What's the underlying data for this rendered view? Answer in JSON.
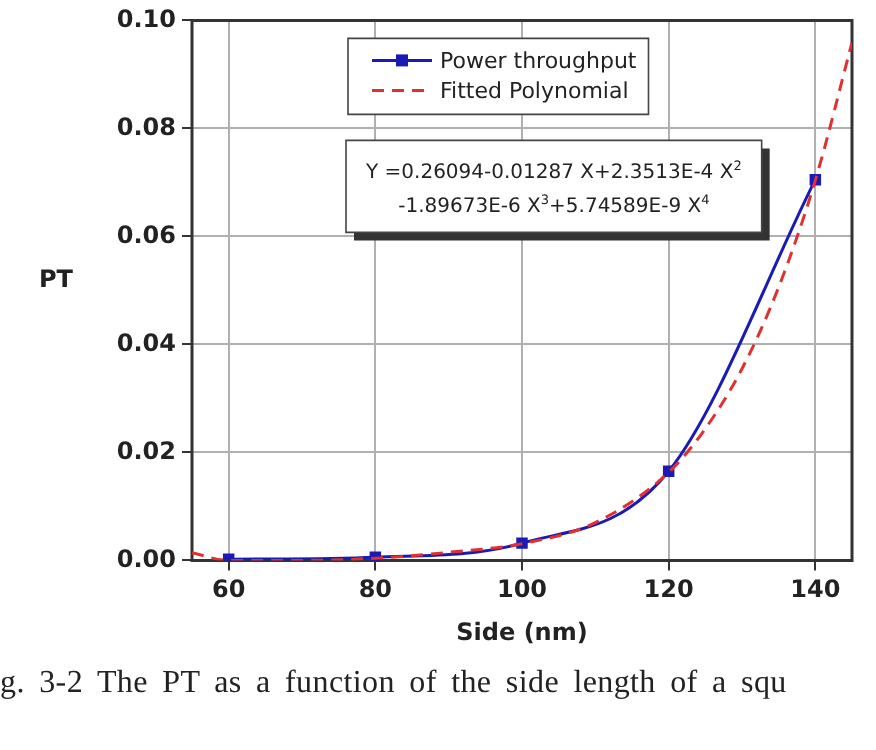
{
  "chart_data": {
    "type": "line",
    "xlabel": "Side (nm)",
    "ylabel": "PT",
    "xlim": [
      55,
      145
    ],
    "xticks": [
      60,
      80,
      100,
      120,
      140
    ],
    "ylim": [
      0,
      0.1
    ],
    "yticks": [
      {
        "value": 0,
        "label": "0.00"
      },
      {
        "value": 0.02,
        "label": "0.02"
      },
      {
        "value": 0.04,
        "label": "0.04"
      },
      {
        "value": 0.06,
        "label": "0.06"
      },
      {
        "value": 0.08,
        "label": "0.08"
      },
      {
        "value": 0.1,
        "label": "0.10"
      }
    ],
    "grid": true,
    "legend": "top left",
    "series": [
      {
        "name": "Power throughput",
        "color": "#1a1ab4",
        "marker": "square",
        "line_style": "solid",
        "x": [
          60,
          80,
          100,
          120,
          140
        ],
        "values": [
          0.0002,
          0.0006,
          0.0032,
          0.0165,
          0.0705
        ]
      },
      {
        "name": "Fitted Polynomial",
        "color": "#e03030",
        "marker": "none",
        "line_style": "dashed",
        "x": [
          55,
          60,
          70,
          80,
          90,
          100,
          110,
          120,
          125,
          130,
          135,
          140,
          145
        ],
        "values": [
          0.0014,
          0.0,
          0.0,
          0.0004,
          0.0015,
          0.0031,
          0.007,
          0.0163,
          0.0244,
          0.0355,
          0.0506,
          0.0704,
          0.0959
        ]
      }
    ],
    "annotations": [
      "Y =0.26094-0.01287 X+2.3513E-4 X$^{2}$",
      "-1.89673E-6 X$^{3}$+5.74589E-9 X$^{4}$",
      "g. 3-2 The PT as a function of the side length of a squ"
    ]
  }
}
